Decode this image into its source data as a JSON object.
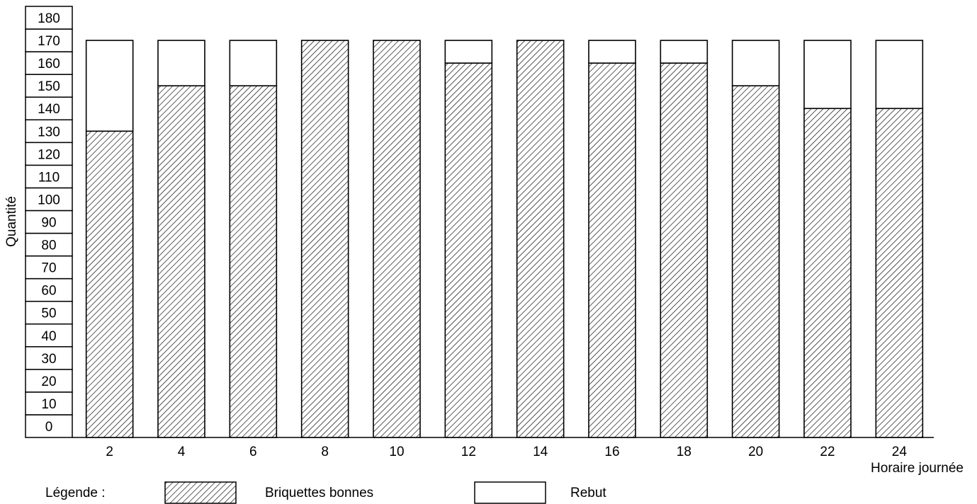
{
  "chart_data": {
    "type": "bar",
    "stacked": true,
    "categories": [
      "2",
      "4",
      "6",
      "8",
      "10",
      "12",
      "14",
      "16",
      "18",
      "20",
      "22",
      "24"
    ],
    "series": [
      {
        "name": "Briquettes bonnes",
        "pattern": "hatch",
        "values": [
          135,
          155,
          155,
          175,
          175,
          165,
          175,
          165,
          165,
          155,
          145,
          145
        ]
      },
      {
        "name": "Rebut",
        "pattern": "none",
        "values": [
          40,
          20,
          20,
          0,
          0,
          10,
          0,
          10,
          10,
          20,
          30,
          30
        ]
      }
    ],
    "ylabel": "Quantité",
    "xlabel": "Horaire journée",
    "ylim": [
      0,
      180
    ],
    "yticks": [
      0,
      10,
      20,
      30,
      40,
      50,
      60,
      70,
      80,
      90,
      100,
      110,
      120,
      130,
      140,
      150,
      160,
      170,
      180
    ],
    "legend": {
      "title": "Légende :",
      "placement": "bottom"
    },
    "grid": false
  },
  "colors": {
    "stroke": "#000000",
    "background": "#ffffff",
    "hatch": "#000000"
  }
}
